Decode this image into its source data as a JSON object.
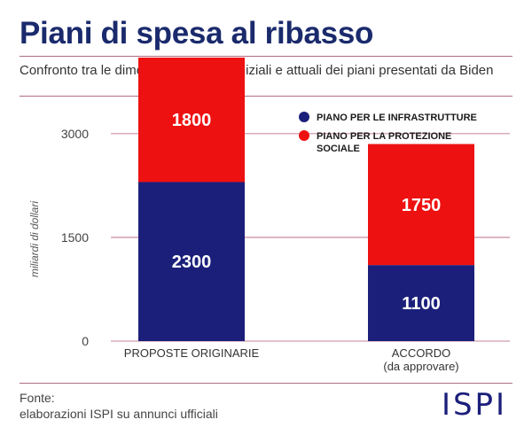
{
  "title": "Piani di spesa al ribasso",
  "subtitle": "Confronto tra le dimensioni di spesa iniziali e attuali dei piani presentati da Biden",
  "source_label": "Fonte:",
  "source_text": "elaborazioni ISPI su annunci ufficiali",
  "logo_text": "ISPI",
  "colors": {
    "infrastructure": "#1b1f7a",
    "social": "#ee1111",
    "title": "#1a2a6c"
  },
  "chart_data": {
    "type": "bar",
    "stacked": true,
    "categories": [
      {
        "line1": "PROPOSTE ORIGINARIE",
        "line2": ""
      },
      {
        "line1": "ACCORDO",
        "line2": "(da approvare)"
      }
    ],
    "series": [
      {
        "name": "PIANO PER LE INFRASTRUTTURE",
        "values": [
          2300,
          1100
        ],
        "color": "#1b1f7a"
      },
      {
        "name": "PIANO PER LA PROTEZIONE SOCIALE",
        "values": [
          1800,
          1750
        ],
        "color": "#ee1111"
      }
    ],
    "legend": [
      {
        "line1": "PIANO PER LE INFRASTRUTTURE",
        "line2": "",
        "color": "#1b1f7a"
      },
      {
        "line1": "PIANO PER LA PROTEZIONE",
        "line2": "SOCIALE",
        "color": "#ee1111"
      }
    ],
    "legend_position": "top-right",
    "ylabel": "miliardi di dollari",
    "yticks": [
      0,
      1500,
      3000
    ],
    "ylim": [
      0,
      4100
    ],
    "grid": true
  }
}
